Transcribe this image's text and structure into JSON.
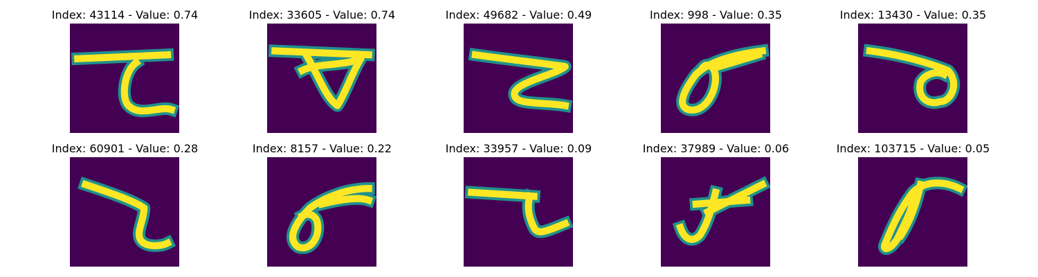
{
  "colors": {
    "background": "#440154",
    "edge": "#21918c",
    "ink": "#fde725"
  },
  "panels": [
    {
      "title": "Index: 43114 - Value: 0.74",
      "glyph": "stroke-a"
    },
    {
      "title": "Index: 33605 - Value: 0.74",
      "glyph": "loop-b"
    },
    {
      "title": "Index: 49682 - Value: 0.49",
      "glyph": "stroke-c"
    },
    {
      "title": "Index: 998 - Value: 0.35",
      "glyph": "loop-d"
    },
    {
      "title": "Index: 13430 - Value: 0.35",
      "glyph": "loop-e"
    },
    {
      "title": "Index: 60901 - Value: 0.28",
      "glyph": "stroke-f"
    },
    {
      "title": "Index: 8157 - Value: 0.22",
      "glyph": "loop-g"
    },
    {
      "title": "Index: 33957 - Value: 0.09",
      "glyph": "stroke-h"
    },
    {
      "title": "Index: 37989 - Value: 0.06",
      "glyph": "stroke-i"
    },
    {
      "title": "Index: 103715 - Value: 0.05",
      "glyph": "loop-j"
    }
  ]
}
